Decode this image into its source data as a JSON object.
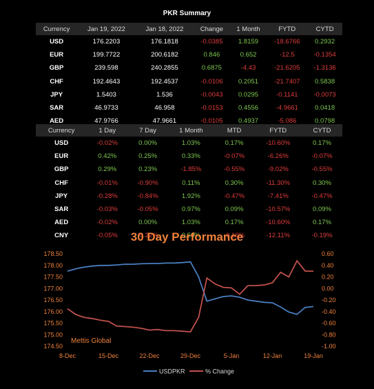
{
  "header": {
    "title": "PKR Summary"
  },
  "table1": {
    "columns": [
      "Currency",
      "Jan 19, 2022",
      "Jan 18, 2022",
      "Change",
      "1 Month",
      "FYTD",
      "CYTD"
    ],
    "rows": [
      [
        "USD",
        "176.2203",
        "176.1818",
        "-0.0385",
        "1.8159",
        "-18.6766",
        "0.2932"
      ],
      [
        "EUR",
        "199.7722",
        "200.6182",
        "0.846",
        "0.652",
        "-12.5",
        "-0.1354"
      ],
      [
        "GBP",
        "239.598",
        "240.2855",
        "0.6875",
        "-4.43",
        "-21.6205",
        "-1.3136"
      ],
      [
        "CHF",
        "192.4643",
        "192.4537",
        "-0.0106",
        "0.2051",
        "-21.7407",
        "0.5838"
      ],
      [
        "JPY",
        "1.5403",
        "1.536",
        "-0.0043",
        "0.0295",
        "-0.1141",
        "-0.0073"
      ],
      [
        "SAR",
        "46.9733",
        "46.958",
        "-0.0153",
        "0.4556",
        "-4.9661",
        "0.0418"
      ],
      [
        "AED",
        "47.9766",
        "47.9661",
        "-0.0105",
        "0.4937",
        "-5.086",
        "0.0798"
      ],
      [
        "CNY",
        "27.7508",
        "27.7375",
        "-0.0133",
        "0.1598",
        "-3.3598",
        "-0.0529"
      ]
    ]
  },
  "table2": {
    "columns": [
      "Currency",
      "1 Day",
      "7 Day",
      "1 Month",
      "MTD",
      "FYTD",
      "CYTD"
    ],
    "rows": [
      [
        "USD",
        "-0.02%",
        "0.00%",
        "1.03%",
        "0.17%",
        "-10.60%",
        "0.17%"
      ],
      [
        "EUR",
        "0.42%",
        "0.25%",
        "0.33%",
        "-0.07%",
        "-6.26%",
        "-0.07%"
      ],
      [
        "GBP",
        "0.29%",
        "0.23%",
        "-1.85%",
        "-0.55%",
        "-9.02%",
        "-0.55%"
      ],
      [
        "CHF",
        "-0.01%",
        "-0.90%",
        "0.11%",
        "0.30%",
        "-11.30%",
        "0.30%"
      ],
      [
        "JPY",
        "-0.28%",
        "-0.84%",
        "1.92%",
        "-0.47%",
        "-7.41%",
        "-0.47%"
      ],
      [
        "SAR",
        "-0.03%",
        "-0.05%",
        "0.97%",
        "0.09%",
        "-10.57%",
        "0.09%"
      ],
      [
        "AED",
        "-0.02%",
        "0.00%",
        "1.03%",
        "0.17%",
        "-10.60%",
        "0.17%"
      ],
      [
        "CNY",
        "-0.05%",
        "-0.22%",
        "0.58%",
        "-0.19%",
        "-12.11%",
        "-0.19%"
      ]
    ]
  },
  "colors": {
    "positive": "#7ec850",
    "negative": "#e03c3c",
    "accent": "#f0823c",
    "usd_line": "#4a7fc1",
    "pct_line": "#c0504d"
  },
  "chart_data": {
    "type": "line",
    "title": "30 Day Performance",
    "watermark": "Mettis Global",
    "x": [
      "8-Dec",
      "9-Dec",
      "10-Dec",
      "13-Dec",
      "14-Dec",
      "15-Dec",
      "16-Dec",
      "17-Dec",
      "20-Dec",
      "21-Dec",
      "22-Dec",
      "23-Dec",
      "24-Dec",
      "27-Dec",
      "28-Dec",
      "29-Dec",
      "30-Dec",
      "31-Dec",
      "3-Jan",
      "4-Jan",
      "5-Jan",
      "6-Jan",
      "7-Jan",
      "10-Jan",
      "11-Jan",
      "12-Jan",
      "13-Jan",
      "14-Jan",
      "17-Jan",
      "18-Jan",
      "19-Jan"
    ],
    "xticks": [
      "8-Dec",
      "15-Dec",
      "22-Dec",
      "29-Dec",
      "5-Jan",
      "12-Jan",
      "19-Jan"
    ],
    "series": [
      {
        "name": "USDPKR",
        "axis": "left",
        "values": [
          177.75,
          177.85,
          177.92,
          177.97,
          178.0,
          178.0,
          178.02,
          178.05,
          178.05,
          178.07,
          178.08,
          178.08,
          178.1,
          178.1,
          178.12,
          178.15,
          177.5,
          176.45,
          176.55,
          176.65,
          176.68,
          176.62,
          176.5,
          176.45,
          176.4,
          176.38,
          176.2,
          175.98,
          175.88,
          176.18,
          176.22
        ]
      },
      {
        "name": "% Change",
        "axis": "right",
        "values": [
          -0.35,
          -0.45,
          -0.5,
          -0.52,
          -0.55,
          -0.57,
          -0.65,
          -0.66,
          -0.67,
          -0.69,
          -0.72,
          -0.71,
          -0.73,
          -0.73,
          -0.74,
          -0.75,
          -0.5,
          0.18,
          0.08,
          0.02,
          0.01,
          -0.1,
          0.05,
          0.05,
          0.06,
          0.1,
          0.28,
          0.2,
          0.48,
          0.3,
          0.3
        ]
      }
    ],
    "ylim_left": [
      174.5,
      178.5
    ],
    "yticks_left": [
      "178.50",
      "178.00",
      "177.50",
      "177.00",
      "176.50",
      "176.00",
      "175.50",
      "175.00",
      "174.50"
    ],
    "ylim_right": [
      -1.0,
      0.6
    ],
    "yticks_right": [
      "0.60",
      "0.40",
      "0.20",
      "0.00",
      "-0.20",
      "-0.40",
      "-0.60",
      "-0.80",
      "-1.00"
    ],
    "legend_position": "bottom"
  }
}
